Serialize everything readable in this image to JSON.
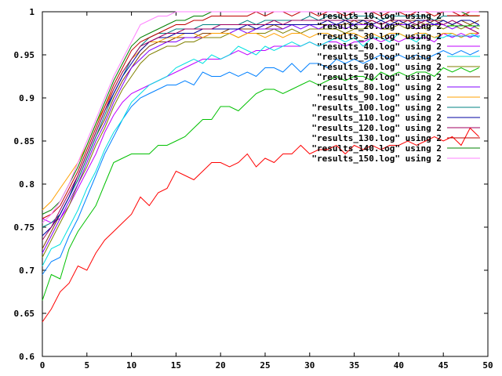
{
  "chart_data": {
    "type": "line",
    "title": "",
    "xlabel": "",
    "ylabel": "",
    "xlim": [
      0,
      50
    ],
    "ylim": [
      0.6,
      1.0
    ],
    "grid": false,
    "legend_placement": "top-right",
    "x_ticks": [
      "0",
      "5",
      "10",
      "15",
      "20",
      "25",
      "30",
      "35",
      "40",
      "45",
      "50"
    ],
    "y_ticks": [
      "0.6",
      "0.65",
      "0.7",
      "0.75",
      "0.8",
      "0.85",
      "0.9",
      "0.95",
      "1"
    ],
    "x": [
      0,
      1,
      2,
      3,
      4,
      5,
      6,
      7,
      8,
      9,
      10,
      11,
      12,
      13,
      14,
      15,
      16,
      17,
      18,
      19,
      20,
      21,
      22,
      23,
      24,
      25,
      26,
      27,
      28,
      29,
      30,
      31,
      32,
      33,
      34,
      35,
      36,
      37,
      38,
      39,
      40,
      41,
      42,
      43,
      44,
      45,
      46,
      47,
      48,
      49
    ],
    "series": [
      {
        "name": "\"results_10.log\" using 2",
        "color": "#ff0000",
        "values": [
          0.64,
          0.655,
          0.675,
          0.685,
          0.705,
          0.7,
          0.72,
          0.735,
          0.745,
          0.755,
          0.765,
          0.785,
          0.775,
          0.79,
          0.795,
          0.815,
          0.81,
          0.805,
          0.815,
          0.825,
          0.825,
          0.82,
          0.825,
          0.835,
          0.82,
          0.83,
          0.825,
          0.835,
          0.835,
          0.845,
          0.835,
          0.84,
          0.84,
          0.845,
          0.835,
          0.845,
          0.84,
          0.845,
          0.84,
          0.845,
          0.845,
          0.85,
          0.845,
          0.85,
          0.855,
          0.85,
          0.855,
          0.845,
          0.865,
          0.855
        ]
      },
      {
        "name": "\"results_20.log\" using 2",
        "color": "#00c000",
        "values": [
          0.665,
          0.695,
          0.69,
          0.725,
          0.745,
          0.76,
          0.775,
          0.8,
          0.825,
          0.83,
          0.835,
          0.835,
          0.835,
          0.845,
          0.845,
          0.85,
          0.855,
          0.865,
          0.875,
          0.875,
          0.89,
          0.89,
          0.885,
          0.895,
          0.905,
          0.91,
          0.91,
          0.905,
          0.91,
          0.915,
          0.92,
          0.915,
          0.92,
          0.925,
          0.92,
          0.925,
          0.925,
          0.92,
          0.93,
          0.925,
          0.93,
          0.925,
          0.93,
          0.93,
          0.925,
          0.935,
          0.93,
          0.935,
          0.93,
          0.935
        ]
      },
      {
        "name": "\"results_30.log\" using 2",
        "color": "#0080ff",
        "values": [
          0.695,
          0.71,
          0.715,
          0.74,
          0.76,
          0.785,
          0.81,
          0.835,
          0.855,
          0.875,
          0.89,
          0.9,
          0.905,
          0.91,
          0.915,
          0.915,
          0.92,
          0.915,
          0.93,
          0.925,
          0.925,
          0.93,
          0.925,
          0.93,
          0.925,
          0.935,
          0.935,
          0.93,
          0.94,
          0.93,
          0.94,
          0.94,
          0.935,
          0.945,
          0.94,
          0.945,
          0.94,
          0.945,
          0.95,
          0.945,
          0.95,
          0.945,
          0.95,
          0.945,
          0.95,
          0.955,
          0.95,
          0.955,
          0.95,
          0.955
        ]
      },
      {
        "name": "\"results_40.log\" using 2",
        "color": "#c000ff",
        "values": [
          0.76,
          0.755,
          0.76,
          0.775,
          0.795,
          0.815,
          0.835,
          0.86,
          0.88,
          0.895,
          0.905,
          0.91,
          0.915,
          0.92,
          0.925,
          0.93,
          0.935,
          0.94,
          0.945,
          0.945,
          0.945,
          0.95,
          0.955,
          0.95,
          0.955,
          0.955,
          0.96,
          0.96,
          0.96,
          0.96,
          0.965,
          0.96,
          0.965,
          0.965,
          0.96,
          0.965,
          0.965,
          0.97,
          0.965,
          0.97,
          0.965,
          0.97,
          0.97,
          0.97,
          0.965,
          0.975,
          0.97,
          0.975,
          0.97,
          0.975
        ]
      },
      {
        "name": "\"results_50.log\" using 2",
        "color": "#00e0e0",
        "values": [
          0.705,
          0.725,
          0.73,
          0.75,
          0.77,
          0.795,
          0.815,
          0.84,
          0.86,
          0.875,
          0.895,
          0.905,
          0.915,
          0.92,
          0.925,
          0.935,
          0.94,
          0.945,
          0.94,
          0.95,
          0.945,
          0.95,
          0.96,
          0.955,
          0.95,
          0.96,
          0.955,
          0.96,
          0.965,
          0.96,
          0.965,
          0.96,
          0.965,
          0.97,
          0.965,
          0.97,
          0.96,
          0.97,
          0.97,
          0.965,
          0.975,
          0.97,
          0.965,
          0.975,
          0.97,
          0.97,
          0.975,
          0.97,
          0.975,
          0.97
        ]
      },
      {
        "name": "\"results_60.log\" using 2",
        "color": "#808000",
        "values": [
          0.715,
          0.735,
          0.755,
          0.775,
          0.8,
          0.82,
          0.845,
          0.865,
          0.89,
          0.91,
          0.925,
          0.94,
          0.95,
          0.955,
          0.96,
          0.96,
          0.965,
          0.965,
          0.97,
          0.97,
          0.97,
          0.975,
          0.97,
          0.975,
          0.975,
          0.975,
          0.98,
          0.975,
          0.98,
          0.975,
          0.98,
          0.98,
          0.98,
          0.98,
          0.975,
          0.98,
          0.98,
          0.985,
          0.98,
          0.98,
          0.985,
          0.98,
          0.985,
          0.98,
          0.985,
          0.98,
          0.985,
          0.98,
          0.985,
          0.98
        ]
      },
      {
        "name": "\"results_70.log\" using 2",
        "color": "#804000",
        "values": [
          0.725,
          0.745,
          0.765,
          0.785,
          0.805,
          0.83,
          0.855,
          0.875,
          0.9,
          0.92,
          0.935,
          0.95,
          0.96,
          0.965,
          0.965,
          0.97,
          0.97,
          0.97,
          0.975,
          0.975,
          0.975,
          0.98,
          0.98,
          0.98,
          0.98,
          0.98,
          0.985,
          0.98,
          0.985,
          0.985,
          0.985,
          0.985,
          0.985,
          0.985,
          0.985,
          0.99,
          0.985,
          0.99,
          0.985,
          0.99,
          0.985,
          0.99,
          0.99,
          0.985,
          0.99,
          0.99,
          0.985,
          0.99,
          0.985,
          0.99
        ]
      },
      {
        "name": "\"results_80.log\" using 2",
        "color": "#8000ff",
        "values": [
          0.72,
          0.74,
          0.76,
          0.78,
          0.8,
          0.825,
          0.85,
          0.87,
          0.895,
          0.915,
          0.935,
          0.945,
          0.955,
          0.96,
          0.965,
          0.965,
          0.97,
          0.97,
          0.97,
          0.975,
          0.975,
          0.975,
          0.98,
          0.975,
          0.98,
          0.98,
          0.98,
          0.98,
          0.985,
          0.98,
          0.985,
          0.98,
          0.985,
          0.985,
          0.98,
          0.985,
          0.985,
          0.985,
          0.98,
          0.985,
          0.985,
          0.985,
          0.98,
          0.985,
          0.985,
          0.985,
          0.98,
          0.985,
          0.98,
          0.985
        ]
      },
      {
        "name": "\"results_90.log\" using 2",
        "color": "#ffa000",
        "values": [
          0.77,
          0.78,
          0.795,
          0.81,
          0.825,
          0.845,
          0.87,
          0.89,
          0.91,
          0.93,
          0.945,
          0.955,
          0.965,
          0.965,
          0.97,
          0.97,
          0.975,
          0.975,
          0.97,
          0.975,
          0.975,
          0.975,
          0.97,
          0.975,
          0.975,
          0.97,
          0.975,
          0.97,
          0.975,
          0.975,
          0.97,
          0.975,
          0.975,
          0.97,
          0.975,
          0.975,
          0.97,
          0.975,
          0.97,
          0.975,
          0.975,
          0.97,
          0.975,
          0.975,
          0.97,
          0.975,
          0.975,
          0.97,
          0.975,
          0.975
        ]
      },
      {
        "name": "\"results_100.log\" using 2",
        "color": "#008080",
        "values": [
          0.75,
          0.755,
          0.765,
          0.785,
          0.805,
          0.83,
          0.855,
          0.88,
          0.905,
          0.925,
          0.945,
          0.96,
          0.97,
          0.975,
          0.975,
          0.98,
          0.98,
          0.98,
          0.985,
          0.985,
          0.985,
          0.985,
          0.985,
          0.99,
          0.985,
          0.99,
          0.99,
          0.99,
          0.99,
          0.99,
          0.995,
          0.99,
          0.995,
          0.995,
          0.99,
          0.995,
          0.995,
          0.995,
          0.99,
          0.995,
          0.995,
          0.995,
          0.995,
          0.995,
          0.99,
          0.995,
          0.995,
          0.995,
          0.995,
          0.995
        ]
      },
      {
        "name": "\"results_110.log\" using 2",
        "color": "#0000a0",
        "values": [
          0.74,
          0.75,
          0.765,
          0.785,
          0.81,
          0.835,
          0.86,
          0.885,
          0.905,
          0.925,
          0.94,
          0.955,
          0.965,
          0.97,
          0.97,
          0.975,
          0.975,
          0.975,
          0.98,
          0.98,
          0.98,
          0.98,
          0.98,
          0.985,
          0.98,
          0.985,
          0.985,
          0.985,
          0.985,
          0.985,
          0.985,
          0.985,
          0.99,
          0.985,
          0.99,
          0.985,
          0.99,
          0.985,
          0.99,
          0.985,
          0.99,
          0.985,
          0.99,
          0.99,
          0.985,
          0.99,
          0.985,
          0.99,
          0.99,
          0.985
        ]
      },
      {
        "name": "\"results_120.log\" using 2",
        "color": "#a00060",
        "values": [
          0.735,
          0.75,
          0.77,
          0.79,
          0.81,
          0.835,
          0.86,
          0.885,
          0.91,
          0.93,
          0.945,
          0.96,
          0.965,
          0.97,
          0.975,
          0.975,
          0.98,
          0.98,
          0.98,
          0.98,
          0.985,
          0.985,
          0.985,
          0.985,
          0.985,
          0.985,
          0.99,
          0.985,
          0.99,
          0.99,
          0.99,
          0.99,
          0.99,
          0.99,
          0.99,
          0.99,
          0.99,
          0.99,
          0.985,
          0.99,
          0.99,
          0.99,
          0.985,
          0.99,
          0.99,
          0.985,
          0.99,
          0.985,
          0.98,
          0.975
        ]
      },
      {
        "name": "\"results_130.log\" using 2",
        "color": "#c00000",
        "values": [
          0.76,
          0.765,
          0.775,
          0.795,
          0.815,
          0.84,
          0.865,
          0.89,
          0.915,
          0.935,
          0.955,
          0.965,
          0.97,
          0.975,
          0.98,
          0.985,
          0.985,
          0.99,
          0.99,
          0.995,
          0.995,
          0.995,
          0.995,
          0.995,
          1.0,
          0.995,
          1.0,
          1.0,
          0.995,
          1.0,
          1.0,
          0.995,
          1.0,
          1.0,
          0.995,
          1.0,
          1.0,
          1.0,
          0.995,
          1.0,
          1.0,
          0.995,
          1.0,
          1.0,
          0.995,
          1.0,
          1.0,
          0.995,
          1.0,
          1.0
        ]
      },
      {
        "name": "\"results_140.log\" using 2",
        "color": "#008000",
        "values": [
          0.765,
          0.77,
          0.78,
          0.8,
          0.82,
          0.845,
          0.87,
          0.895,
          0.92,
          0.94,
          0.96,
          0.97,
          0.975,
          0.98,
          0.985,
          0.99,
          0.99,
          0.995,
          0.995,
          1.0,
          1.0,
          1.0,
          1.0,
          1.0,
          1.0,
          1.0,
          1.0,
          1.0,
          1.0,
          1.0,
          1.0,
          1.0,
          1.0,
          1.0,
          1.0,
          1.0,
          1.0,
          1.0,
          1.0,
          1.0,
          1.0,
          1.0,
          1.0,
          1.0,
          1.0,
          1.0,
          1.0,
          1.0,
          0.995,
          0.995
        ]
      },
      {
        "name": "\"results_150.log\" using 2",
        "color": "#ff80ff",
        "values": [
          0.755,
          0.765,
          0.78,
          0.8,
          0.825,
          0.85,
          0.875,
          0.9,
          0.925,
          0.945,
          0.965,
          0.985,
          0.99,
          0.995,
          0.995,
          1.0,
          1.0,
          1.0,
          1.0,
          1.0,
          1.0,
          1.0,
          1.0,
          1.0,
          1.0,
          1.0,
          1.0,
          1.0,
          1.0,
          1.0,
          1.0,
          1.0,
          1.0,
          1.0,
          1.0,
          1.0,
          1.0,
          1.0,
          1.0,
          1.0,
          1.0,
          1.0,
          1.0,
          1.0,
          1.0,
          1.0,
          1.0,
          1.0,
          1.0,
          1.0
        ]
      }
    ]
  }
}
